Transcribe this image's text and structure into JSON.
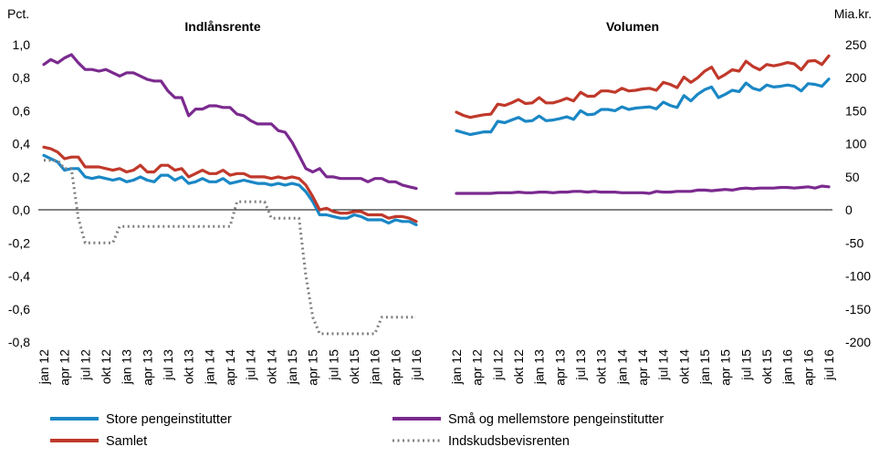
{
  "chart_data": {
    "type": "line",
    "left_axis_unit": "Pct.",
    "right_axis_unit": "Mia.kr.",
    "left_ylim": [
      -0.8,
      1.0
    ],
    "left_ticks": [
      "1,0",
      "0,8",
      "0,6",
      "0,4",
      "0,2",
      "0,0",
      "-0,2",
      "-0,4",
      "-0,6",
      "-0,8"
    ],
    "left_tick_values": [
      1.0,
      0.8,
      0.6,
      0.4,
      0.2,
      0.0,
      -0.2,
      -0.4,
      -0.6,
      -0.8
    ],
    "right_ylim": [
      -200,
      250
    ],
    "right_ticks": [
      "250",
      "200",
      "150",
      "100",
      "50",
      "0",
      "-50",
      "-100",
      "-150",
      "-200"
    ],
    "right_tick_values": [
      250,
      200,
      150,
      100,
      50,
      0,
      -50,
      -100,
      -150,
      -200
    ],
    "x_tick_labels": [
      "jan 12",
      "apr 12",
      "jul 12",
      "okt 12",
      "jan 13",
      "apr 13",
      "jul 13",
      "okt 13",
      "jan 14",
      "apr 14",
      "jul 14",
      "okt 14",
      "jan 15",
      "apr 15",
      "jul 15",
      "okt 15",
      "jan 16",
      "apr 16",
      "jul 16"
    ],
    "months": 55,
    "panels": [
      {
        "title": "Indlånsrente",
        "axis": "left",
        "series": [
          {
            "name": "Store pengeinstitutter",
            "color": "#1a87c5",
            "style": "solid",
            "values": [
              0.33,
              0.31,
              0.29,
              0.24,
              0.25,
              0.25,
              0.2,
              0.19,
              0.2,
              0.19,
              0.18,
              0.19,
              0.17,
              0.18,
              0.2,
              0.18,
              0.17,
              0.21,
              0.21,
              0.18,
              0.2,
              0.16,
              0.17,
              0.19,
              0.17,
              0.17,
              0.19,
              0.16,
              0.17,
              0.18,
              0.17,
              0.16,
              0.16,
              0.15,
              0.16,
              0.15,
              0.16,
              0.15,
              0.11,
              0.05,
              -0.03,
              -0.03,
              -0.04,
              -0.05,
              -0.05,
              -0.03,
              -0.04,
              -0.06,
              -0.06,
              -0.06,
              -0.08,
              -0.06,
              -0.07,
              -0.07,
              -0.09
            ]
          },
          {
            "name": "Små og mellemstore pengeinstitutter",
            "color": "#7b2a8f",
            "style": "solid",
            "values": [
              0.88,
              0.91,
              0.89,
              0.92,
              0.94,
              0.89,
              0.85,
              0.85,
              0.84,
              0.85,
              0.83,
              0.81,
              0.83,
              0.83,
              0.81,
              0.79,
              0.78,
              0.78,
              0.72,
              0.68,
              0.68,
              0.57,
              0.61,
              0.61,
              0.63,
              0.63,
              0.62,
              0.62,
              0.58,
              0.57,
              0.54,
              0.52,
              0.52,
              0.52,
              0.48,
              0.47,
              0.41,
              0.33,
              0.25,
              0.23,
              0.25,
              0.2,
              0.2,
              0.19,
              0.19,
              0.19,
              0.19,
              0.17,
              0.19,
              0.19,
              0.17,
              0.17,
              0.15,
              0.14,
              0.13
            ]
          },
          {
            "name": "Samlet",
            "color": "#c0392b",
            "style": "solid",
            "values": [
              0.38,
              0.37,
              0.35,
              0.31,
              0.32,
              0.32,
              0.26,
              0.26,
              0.26,
              0.25,
              0.24,
              0.25,
              0.23,
              0.24,
              0.27,
              0.23,
              0.23,
              0.27,
              0.27,
              0.24,
              0.25,
              0.2,
              0.22,
              0.24,
              0.22,
              0.22,
              0.24,
              0.21,
              0.22,
              0.22,
              0.2,
              0.2,
              0.2,
              0.19,
              0.2,
              0.19,
              0.2,
              0.19,
              0.15,
              0.08,
              0.0,
              0.01,
              -0.01,
              -0.02,
              -0.02,
              -0.01,
              -0.01,
              -0.03,
              -0.03,
              -0.03,
              -0.05,
              -0.04,
              -0.04,
              -0.05,
              -0.07
            ]
          },
          {
            "name": "Indskudsbevisrenten",
            "color": "#808080",
            "style": "dotted",
            "values": [
              0.3,
              0.3,
              0.3,
              0.25,
              0.25,
              -0.05,
              -0.2,
              -0.2,
              -0.2,
              -0.2,
              -0.2,
              -0.1,
              -0.1,
              -0.1,
              -0.1,
              -0.1,
              -0.1,
              -0.1,
              -0.1,
              -0.1,
              -0.1,
              -0.1,
              -0.1,
              -0.1,
              -0.1,
              -0.1,
              -0.1,
              -0.1,
              0.05,
              0.05,
              0.05,
              0.05,
              0.05,
              -0.05,
              -0.05,
              -0.05,
              -0.05,
              -0.05,
              -0.4,
              -0.65,
              -0.75,
              -0.75,
              -0.75,
              -0.75,
              -0.75,
              -0.75,
              -0.75,
              -0.75,
              -0.75,
              -0.65,
              -0.65,
              -0.65,
              -0.65,
              -0.65,
              -0.65
            ]
          }
        ]
      },
      {
        "title": "Volumen",
        "axis": "right",
        "series": [
          {
            "name": "Store pengeinstitutter",
            "color": "#1a87c5",
            "style": "solid",
            "values": [
              120,
              117,
              114,
              116,
              118,
              118,
              134,
              132,
              136,
              140,
              134,
              135,
              142,
              135,
              136,
              138,
              141,
              137,
              150,
              144,
              145,
              152,
              152,
              150,
              156,
              152,
              154,
              155,
              156,
              153,
              163,
              158,
              155,
              173,
              165,
              175,
              182,
              186,
              170,
              175,
              181,
              179,
              192,
              184,
              181,
              189,
              186,
              187,
              189,
              187,
              180,
              191,
              190,
              187,
              198
            ]
          },
          {
            "name": "Små og mellemstore pengeinstitutter",
            "color": "#7b2a8f",
            "style": "solid",
            "values": [
              25,
              25,
              25,
              25,
              25,
              25,
              26,
              26,
              26,
              27,
              26,
              26,
              27,
              27,
              26,
              27,
              27,
              28,
              28,
              27,
              28,
              27,
              27,
              27,
              26,
              26,
              26,
              26,
              25,
              28,
              27,
              27,
              28,
              28,
              28,
              30,
              30,
              29,
              30,
              31,
              30,
              32,
              33,
              32,
              33,
              33,
              33,
              34,
              34,
              33,
              34,
              35,
              33,
              36,
              35
            ]
          },
          {
            "name": "Samlet",
            "color": "#c0392b",
            "style": "solid",
            "values": [
              148,
              143,
              140,
              142,
              144,
              145,
              160,
              158,
              162,
              167,
              161,
              162,
              170,
              162,
              162,
              165,
              169,
              165,
              178,
              172,
              172,
              180,
              180,
              178,
              184,
              180,
              181,
              183,
              184,
              181,
              193,
              190,
              185,
              201,
              193,
              200,
              210,
              216,
              199,
              205,
              212,
              210,
              225,
              217,
              212,
              220,
              218,
              220,
              223,
              221,
              212,
              225,
              226,
              220,
              233
            ]
          }
        ]
      }
    ],
    "legend": [
      "Store pengeinstitutter",
      "Små og mellemstore pengeinstitutter",
      "Samlet",
      "Indskudsbevisrenten"
    ]
  }
}
